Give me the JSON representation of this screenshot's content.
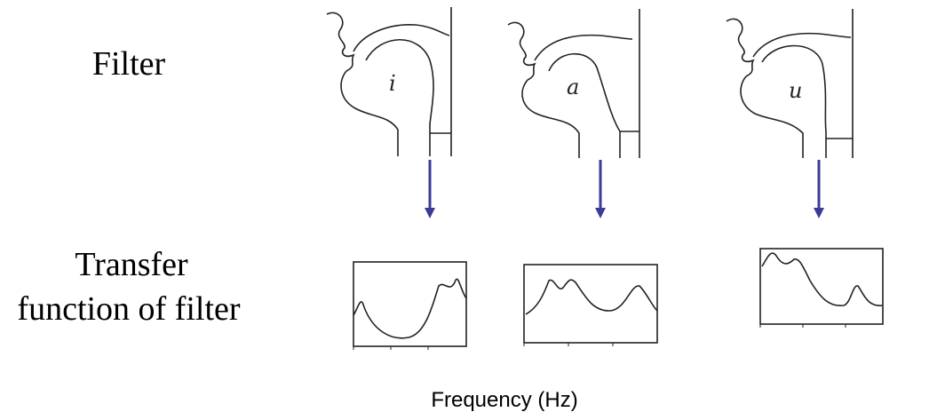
{
  "labels": {
    "filter": "Filter",
    "transfer": [
      "Transfer",
      "function of filter"
    ],
    "x_axis": "Frequency (Hz)"
  },
  "panels": [
    {
      "vowel": "i"
    },
    {
      "vowel": "a"
    },
    {
      "vowel": "u"
    }
  ]
}
